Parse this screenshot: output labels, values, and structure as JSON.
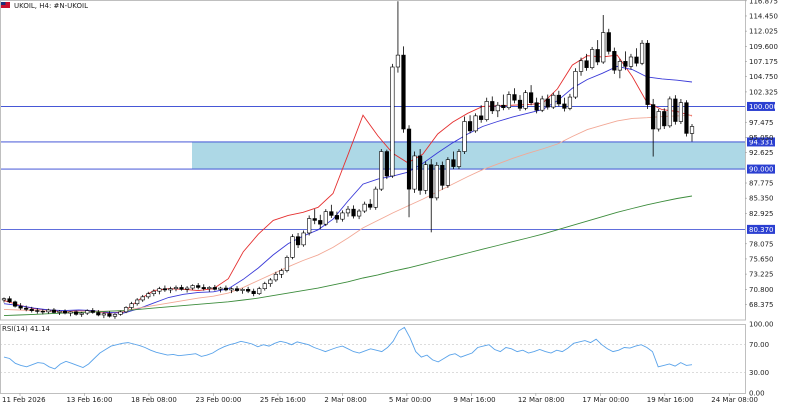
{
  "header": {
    "symbol": "UKOIL, H4: #N-UKOIL",
    "flag_icon": "uk-flag-icon"
  },
  "chart_data": [
    {
      "type": "candlestick",
      "title": "UKOIL, H4: #N-UKOIL",
      "ylim": [
        65.9,
        117.0
      ],
      "y_ticks": [
        "116.875",
        "114.450",
        "112.025",
        "109.600",
        "107.175",
        "104.750",
        "102.325",
        "97.475",
        "95.050",
        "92.625",
        "87.775",
        "85.350",
        "82.925",
        "78.075",
        "75.650",
        "73.225",
        "70.800",
        "68.375"
      ],
      "x_ticks": [
        "11 Feb 2026",
        "13 Feb 16:00",
        "18 Feb 08:00",
        "23 Feb 00:00",
        "25 Feb 16:00",
        "2 Mar 08:00",
        "5 Mar 00:00",
        "9 Mar 16:00",
        "12 Mar 08:00",
        "17 Mar 00:00",
        "19 Mar 16:00",
        "24 Mar 08:00"
      ],
      "horizontal_lines": [
        {
          "value": 100.0,
          "label": "100.000",
          "color": "#2b3fd1"
        },
        {
          "value": 94.331,
          "label": "94.331",
          "color": "#2b3fd1"
        },
        {
          "value": 90.0,
          "label": "90.000",
          "color": "#2b3fd1"
        },
        {
          "value": 80.37,
          "label": "80.370",
          "color": "#2b3fd1"
        }
      ],
      "zone": {
        "from": 90.0,
        "to": 94.331,
        "color": "#add8e6"
      },
      "candles": [
        [
          69.1,
          69.5,
          68.7,
          69.3
        ],
        [
          69.3,
          69.7,
          68.6,
          68.8
        ],
        [
          68.8,
          69.0,
          67.9,
          68.1
        ],
        [
          68.1,
          68.6,
          67.5,
          67.8
        ],
        [
          67.8,
          68.2,
          67.3,
          67.6
        ],
        [
          67.6,
          68.0,
          67.1,
          67.4
        ],
        [
          67.4,
          67.8,
          66.9,
          67.3
        ],
        [
          67.3,
          67.6,
          66.8,
          67.2
        ],
        [
          67.2,
          67.7,
          66.9,
          67.5
        ],
        [
          67.5,
          67.8,
          67.0,
          67.1
        ],
        [
          67.1,
          67.5,
          66.7,
          67.3
        ],
        [
          67.3,
          67.6,
          66.8,
          67.0
        ],
        [
          67.0,
          67.3,
          66.5,
          67.2
        ],
        [
          67.2,
          67.4,
          66.6,
          66.8
        ],
        [
          66.8,
          67.2,
          66.4,
          67.0
        ],
        [
          67.0,
          67.6,
          66.7,
          67.4
        ],
        [
          67.4,
          67.8,
          66.9,
          67.1
        ],
        [
          67.1,
          67.5,
          66.5,
          66.7
        ],
        [
          66.7,
          67.1,
          66.2,
          66.9
        ],
        [
          66.9,
          67.3,
          66.3,
          66.5
        ],
        [
          66.5,
          67.0,
          66.1,
          66.8
        ],
        [
          66.8,
          67.4,
          66.6,
          67.2
        ],
        [
          67.2,
          68.1,
          67.0,
          67.9
        ],
        [
          67.9,
          68.8,
          67.6,
          68.5
        ],
        [
          68.5,
          69.4,
          68.2,
          69.1
        ],
        [
          69.1,
          69.9,
          68.8,
          69.6
        ],
        [
          69.6,
          70.4,
          69.3,
          70.1
        ],
        [
          70.1,
          70.8,
          69.7,
          70.5
        ],
        [
          70.5,
          71.2,
          70.0,
          70.9
        ],
        [
          70.9,
          71.4,
          70.4,
          70.7
        ],
        [
          70.7,
          71.2,
          70.2,
          70.9
        ],
        [
          70.9,
          71.4,
          70.5,
          71.1
        ],
        [
          71.1,
          71.5,
          70.6,
          70.8
        ],
        [
          70.8,
          71.3,
          70.3,
          71.0
        ],
        [
          71.0,
          71.6,
          70.7,
          71.4
        ],
        [
          71.4,
          71.8,
          70.8,
          71.1
        ],
        [
          71.1,
          71.6,
          70.6,
          70.9
        ],
        [
          70.9,
          71.3,
          70.4,
          71.1
        ],
        [
          71.1,
          71.5,
          70.6,
          70.8
        ],
        [
          70.8,
          71.2,
          70.3,
          71.0
        ],
        [
          71.0,
          71.4,
          70.5,
          70.7
        ],
        [
          70.7,
          71.1,
          70.2,
          70.9
        ],
        [
          70.9,
          71.3,
          70.4,
          70.6
        ],
        [
          70.6,
          71.0,
          70.1,
          70.8
        ],
        [
          70.8,
          71.2,
          70.2,
          70.5
        ],
        [
          70.5,
          70.9,
          69.7,
          70.1
        ],
        [
          70.1,
          71.2,
          69.9,
          70.9
        ],
        [
          70.9,
          72.0,
          70.6,
          71.7
        ],
        [
          71.7,
          72.6,
          71.2,
          72.3
        ],
        [
          72.3,
          73.6,
          72.0,
          73.2
        ],
        [
          73.2,
          74.1,
          72.6,
          73.8
        ],
        [
          73.8,
          76.2,
          73.5,
          75.9
        ],
        [
          75.9,
          79.6,
          75.6,
          79.2
        ],
        [
          79.2,
          79.8,
          77.4,
          77.9
        ],
        [
          77.9,
          80.2,
          77.6,
          79.8
        ],
        [
          79.8,
          82.6,
          79.4,
          82.1
        ],
        [
          82.1,
          83.6,
          81.2,
          81.8
        ],
        [
          81.8,
          82.7,
          80.4,
          81.2
        ],
        [
          81.2,
          83.6,
          80.9,
          83.2
        ],
        [
          83.2,
          84.3,
          82.2,
          82.6
        ],
        [
          82.6,
          83.2,
          81.4,
          82.0
        ],
        [
          82.0,
          83.4,
          81.6,
          83.0
        ],
        [
          83.0,
          84.1,
          82.4,
          83.6
        ],
        [
          83.6,
          84.2,
          82.1,
          82.5
        ],
        [
          82.5,
          83.6,
          82.0,
          83.3
        ],
        [
          83.3,
          84.8,
          83.0,
          84.4
        ],
        [
          84.4,
          85.2,
          83.5,
          83.9
        ],
        [
          83.9,
          87.2,
          83.5,
          86.8
        ],
        [
          86.8,
          93.2,
          86.5,
          92.8
        ],
        [
          92.8,
          93.1,
          88.4,
          88.9
        ],
        [
          88.9,
          106.8,
          88.6,
          106.3
        ],
        [
          106.3,
          116.8,
          105.4,
          108.2
        ],
        [
          108.2,
          109.6,
          95.8,
          96.4
        ],
        [
          96.4,
          97.0,
          82.3,
          86.8
        ],
        [
          86.8,
          92.8,
          86.2,
          92.1
        ],
        [
          92.1,
          93.2,
          85.9,
          86.6
        ],
        [
          86.6,
          91.2,
          86.0,
          90.7
        ],
        [
          90.7,
          91.6,
          79.9,
          85.4
        ],
        [
          85.4,
          91.1,
          85.0,
          90.6
        ],
        [
          90.6,
          91.2,
          86.7,
          87.4
        ],
        [
          87.4,
          91.9,
          87.0,
          91.5
        ],
        [
          91.5,
          92.8,
          90.0,
          90.4
        ],
        [
          90.4,
          93.2,
          90.0,
          92.8
        ],
        [
          92.8,
          98.4,
          92.4,
          97.6
        ],
        [
          97.6,
          98.6,
          95.7,
          96.1
        ],
        [
          96.1,
          98.9,
          95.8,
          98.5
        ],
        [
          98.5,
          100.2,
          97.4,
          97.9
        ],
        [
          97.9,
          101.4,
          97.6,
          100.8
        ],
        [
          100.8,
          101.6,
          98.8,
          99.3
        ],
        [
          99.3,
          100.7,
          98.3,
          100.2
        ],
        [
          100.2,
          101.9,
          99.4,
          99.8
        ],
        [
          99.8,
          102.4,
          99.5,
          101.9
        ],
        [
          101.9,
          102.9,
          100.5,
          101.0
        ],
        [
          101.0,
          101.8,
          99.3,
          99.7
        ],
        [
          99.7,
          102.6,
          99.4,
          102.2
        ],
        [
          102.2,
          103.4,
          100.2,
          100.6
        ],
        [
          100.6,
          101.4,
          98.9,
          99.4
        ],
        [
          99.4,
          101.7,
          99.1,
          101.2
        ],
        [
          101.2,
          101.9,
          99.5,
          99.9
        ],
        [
          99.9,
          102.2,
          99.6,
          101.8
        ],
        [
          101.8,
          102.5,
          100.0,
          100.4
        ],
        [
          100.4,
          101.4,
          99.2,
          99.7
        ],
        [
          99.7,
          102.0,
          99.4,
          101.5
        ],
        [
          101.5,
          106.1,
          101.2,
          105.6
        ],
        [
          105.6,
          107.8,
          104.9,
          107.3
        ],
        [
          107.3,
          108.4,
          105.7,
          106.2
        ],
        [
          106.2,
          109.5,
          105.9,
          109.1
        ],
        [
          109.1,
          110.6,
          106.6,
          107.1
        ],
        [
          107.1,
          114.6,
          106.8,
          111.8
        ],
        [
          111.8,
          112.4,
          108.3,
          108.8
        ],
        [
          108.8,
          109.4,
          105.2,
          105.8
        ],
        [
          105.8,
          107.6,
          104.5,
          107.2
        ],
        [
          107.2,
          108.8,
          105.8,
          106.4
        ],
        [
          106.4,
          108.4,
          105.9,
          107.9
        ],
        [
          107.9,
          109.3,
          106.4,
          106.9
        ],
        [
          106.9,
          110.6,
          106.6,
          110.1
        ],
        [
          110.1,
          110.6,
          99.6,
          100.3
        ],
        [
          100.3,
          101.2,
          92.0,
          96.4
        ],
        [
          96.4,
          99.6,
          96.0,
          99.2
        ],
        [
          99.2,
          99.7,
          96.4,
          96.9
        ],
        [
          96.9,
          101.6,
          96.6,
          101.2
        ],
        [
          101.2,
          101.8,
          97.1,
          97.6
        ],
        [
          97.6,
          101.2,
          97.2,
          100.6
        ],
        [
          100.6,
          101.0,
          95.2,
          95.7
        ],
        [
          95.7,
          97.2,
          94.4,
          96.8
        ]
      ],
      "moving_averages": [
        {
          "name": "MA-fast",
          "color": "#e53030",
          "points": [
            69.0,
            68.3,
            67.7,
            67.5,
            67.2,
            67.4,
            67.3,
            67.0,
            67.2,
            69.1,
            70.6,
            70.9,
            70.8,
            70.6,
            70.9,
            72.5,
            76.8,
            79.6,
            81.8,
            82.6,
            83.1,
            83.9,
            86.1,
            92.3,
            98.6,
            95.3,
            92.5,
            91.0,
            92.4,
            95.6,
            97.5,
            98.9,
            100.0,
            100.1,
            100.2,
            100.3,
            100.5,
            102.8,
            106.6,
            108.1,
            107.9,
            108.2,
            104.8,
            100.6,
            99.5,
            99.2,
            98.5
          ]
        },
        {
          "name": "MA-mid",
          "color": "#3a3ad8",
          "points": [
            68.5,
            68.2,
            67.8,
            67.5,
            67.4,
            67.5,
            67.4,
            67.1,
            67.0,
            67.7,
            68.6,
            69.5,
            70.0,
            70.3,
            70.4,
            70.9,
            72.4,
            74.2,
            76.3,
            78.1,
            79.3,
            80.3,
            82.0,
            84.9,
            87.6,
            88.4,
            88.9,
            89.5,
            90.9,
            92.6,
            94.2,
            95.6,
            96.8,
            97.6,
            98.3,
            98.9,
            99.5,
            100.9,
            102.9,
            104.3,
            105.3,
            106.4,
            105.9,
            104.7,
            104.4,
            104.2,
            103.9
          ]
        },
        {
          "name": "MA-slow",
          "color": "#f2a896",
          "points": [
            67.6,
            67.5,
            67.4,
            67.3,
            67.2,
            67.3,
            67.3,
            67.3,
            67.4,
            67.8,
            68.2,
            68.6,
            69.0,
            69.4,
            69.7,
            70.2,
            71.1,
            72.2,
            73.3,
            74.4,
            75.4,
            76.3,
            77.5,
            79.0,
            80.6,
            81.8,
            83.0,
            84.1,
            85.2,
            86.4,
            87.6,
            88.8,
            89.9,
            90.8,
            91.7,
            92.5,
            93.2,
            94.0,
            95.2,
            96.3,
            97.0,
            97.7,
            98.1,
            98.2,
            98.4,
            98.5,
            98.6
          ]
        },
        {
          "name": "MA-long",
          "color": "#3c8c3c",
          "points": [
            66.6,
            66.7,
            66.8,
            66.9,
            67.0,
            67.1,
            67.2,
            67.3,
            67.4,
            67.6,
            67.8,
            68.0,
            68.2,
            68.4,
            68.6,
            68.8,
            69.1,
            69.4,
            69.8,
            70.2,
            70.6,
            71.0,
            71.5,
            72.0,
            72.6,
            73.1,
            73.7,
            74.2,
            74.8,
            75.4,
            76.0,
            76.6,
            77.2,
            77.8,
            78.4,
            79.0,
            79.6,
            80.3,
            81.0,
            81.7,
            82.4,
            83.1,
            83.7,
            84.3,
            84.8,
            85.3,
            85.7
          ]
        }
      ]
    },
    {
      "type": "line",
      "title": "RSI(14) 41.14",
      "ylim": [
        0,
        100
      ],
      "y_ticks": [
        "100.00",
        "70.00",
        "30.00",
        "0.00"
      ],
      "levels": [
        70,
        30
      ],
      "series": [
        {
          "color": "#5aa3ea",
          "values": [
            52,
            50,
            43,
            40,
            38,
            41,
            44,
            43,
            38,
            35,
            42,
            46,
            43,
            40,
            37,
            42,
            50,
            58,
            63,
            68,
            70,
            72,
            73,
            71,
            69,
            66,
            62,
            59,
            57,
            55,
            56,
            54,
            55,
            56,
            57,
            53,
            55,
            58,
            63,
            67,
            70,
            72,
            75,
            73,
            71,
            67,
            70,
            68,
            72,
            75,
            73,
            70,
            74,
            72,
            70,
            66,
            63,
            60,
            63,
            66,
            68,
            64,
            60,
            58,
            61,
            64,
            62,
            60,
            66,
            75,
            90,
            95,
            80,
            60,
            52,
            55,
            48,
            45,
            50,
            55,
            57,
            52,
            55,
            58,
            66,
            68,
            70,
            63,
            60,
            66,
            64,
            60,
            62,
            58,
            60,
            63,
            60,
            58,
            62,
            60,
            65,
            72,
            74,
            76,
            73,
            78,
            70,
            64,
            60,
            62,
            66,
            65,
            68,
            70,
            66,
            60,
            38,
            40,
            42,
            39,
            44,
            40,
            41
          ]
        }
      ]
    }
  ]
}
